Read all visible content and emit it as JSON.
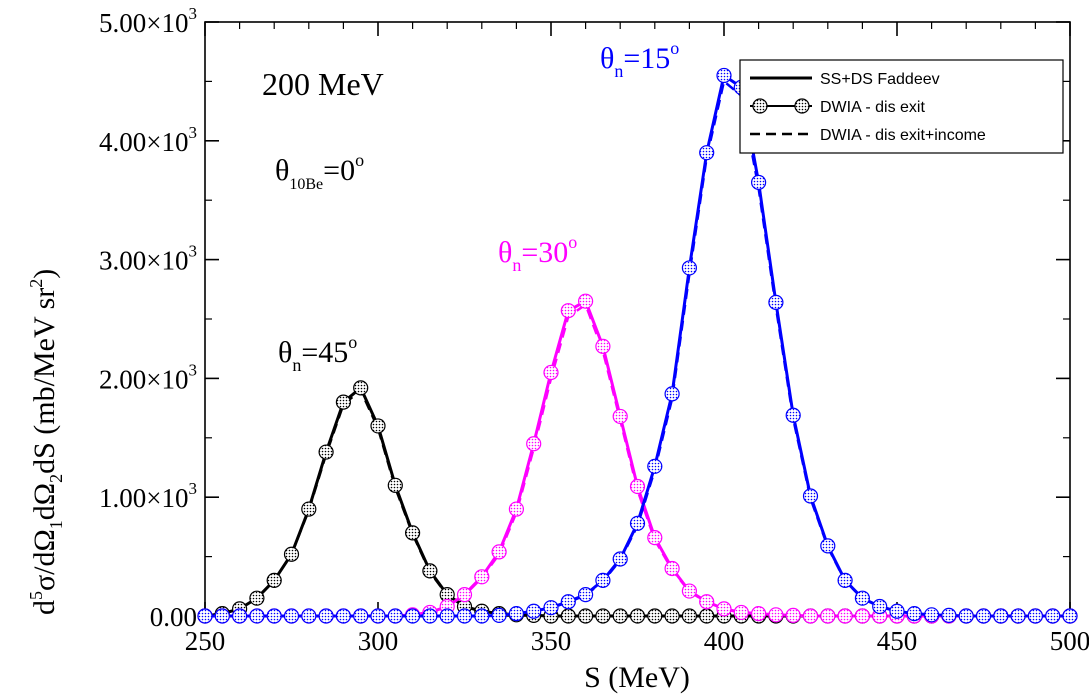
{
  "chart_data": {
    "type": "line",
    "xlabel": "S (MeV)",
    "ylabel": "d⁵σ/dΩ₁dΩ₂dS  (mb/MeV sr²)",
    "xlim": [
      250,
      500
    ],
    "ylim": [
      0,
      5000
    ],
    "x_ticks": [
      250,
      300,
      350,
      400,
      450,
      500
    ],
    "x_tick_labels": [
      "250",
      "300",
      "350",
      "400",
      "450",
      "500"
    ],
    "y_ticks": [
      0,
      1000,
      2000,
      3000,
      4000,
      5000
    ],
    "y_tick_labels": [
      "0.00",
      "1.00×10³",
      "2.00×10³",
      "3.00×10³",
      "4.00×10³",
      "5.00×10³"
    ],
    "grid": false,
    "legend_position": "top-right",
    "legend": [
      {
        "label": "SS+DS Faddeev",
        "style": "solid"
      },
      {
        "label": "DWIA - dis exit",
        "style": "solid-with-markers"
      },
      {
        "label": "DWIA - dis exit+income",
        "style": "dashed"
      }
    ],
    "annotations": {
      "energy": "200 MeV",
      "theta_be": "θ¹⁰Be=0°",
      "theta_45": "θn=45°",
      "theta_30": "θn=30°",
      "theta_15": "θn=15°"
    },
    "colors": {
      "n45": "#000000",
      "n30": "#ff00ff",
      "n15": "#0000ff"
    },
    "x": [
      250,
      255,
      260,
      265,
      270,
      275,
      280,
      285,
      290,
      295,
      300,
      305,
      310,
      315,
      320,
      325,
      330,
      335,
      340,
      345,
      350,
      355,
      360,
      365,
      370,
      375,
      380,
      385,
      390,
      395,
      400,
      405,
      410,
      415,
      420,
      425,
      430,
      435,
      440,
      445,
      450,
      455,
      460,
      465,
      470,
      475,
      480,
      485,
      490,
      495,
      500
    ],
    "series": [
      {
        "name": "θn=45°",
        "color": "#000000",
        "values": [
          0,
          20,
          60,
          150,
          300,
          520,
          900,
          1380,
          1800,
          1920,
          1600,
          1100,
          700,
          380,
          180,
          80,
          40,
          20,
          10,
          5,
          0,
          0,
          0,
          0,
          0,
          0,
          0,
          0,
          0,
          0,
          0,
          0,
          0,
          0,
          0,
          0,
          0,
          0,
          0,
          0,
          0,
          0,
          0,
          0,
          0,
          0,
          0,
          0,
          0,
          0,
          0
        ],
        "dashed_values": [
          0,
          20,
          60,
          150,
          300,
          520,
          890,
          1360,
          1780,
          1900,
          1580,
          1080,
          690,
          370,
          175,
          80,
          40,
          20,
          10,
          5,
          0,
          0,
          0,
          0,
          0,
          0,
          0,
          0,
          0,
          0,
          0,
          0,
          0,
          0,
          0,
          0,
          0,
          0,
          0,
          0,
          0,
          0,
          0,
          0,
          0,
          0,
          0,
          0,
          0,
          0,
          0
        ]
      },
      {
        "name": "θn=30°",
        "color": "#ff00ff",
        "values": [
          0,
          0,
          0,
          0,
          0,
          0,
          0,
          0,
          0,
          0,
          0,
          0,
          10,
          30,
          80,
          180,
          330,
          540,
          900,
          1450,
          2050,
          2570,
          2650,
          2270,
          1680,
          1090,
          660,
          400,
          210,
          120,
          60,
          30,
          20,
          10,
          5,
          0,
          0,
          0,
          0,
          0,
          0,
          0,
          0,
          0,
          0,
          0,
          0,
          0,
          0,
          0,
          0
        ],
        "dashed_values": [
          0,
          0,
          0,
          0,
          0,
          0,
          0,
          0,
          0,
          0,
          0,
          0,
          10,
          30,
          80,
          175,
          320,
          520,
          870,
          1410,
          2000,
          2520,
          2620,
          2230,
          1650,
          1060,
          640,
          390,
          205,
          115,
          58,
          30,
          18,
          10,
          5,
          0,
          0,
          0,
          0,
          0,
          0,
          0,
          0,
          0,
          0,
          0,
          0,
          0,
          0,
          0,
          0
        ]
      },
      {
        "name": "θn=15°",
        "color": "#0000ff",
        "values": [
          0,
          0,
          0,
          0,
          0,
          0,
          0,
          0,
          0,
          0,
          0,
          0,
          0,
          0,
          0,
          0,
          0,
          5,
          20,
          40,
          70,
          120,
          180,
          300,
          480,
          780,
          1260,
          1870,
          2930,
          3900,
          4550,
          4450,
          3650,
          2640,
          1690,
          1010,
          590,
          300,
          150,
          80,
          40,
          20,
          10,
          5,
          0,
          0,
          0,
          0,
          0,
          0,
          0
        ],
        "dashed_values": [
          0,
          0,
          0,
          0,
          0,
          0,
          0,
          0,
          0,
          0,
          0,
          0,
          0,
          0,
          0,
          0,
          0,
          5,
          20,
          40,
          70,
          115,
          175,
          290,
          470,
          760,
          1230,
          1830,
          2880,
          3860,
          4500,
          4380,
          3600,
          2600,
          1660,
          990,
          580,
          295,
          148,
          80,
          40,
          20,
          10,
          5,
          0,
          0,
          0,
          0,
          0,
          0,
          0
        ]
      }
    ]
  }
}
